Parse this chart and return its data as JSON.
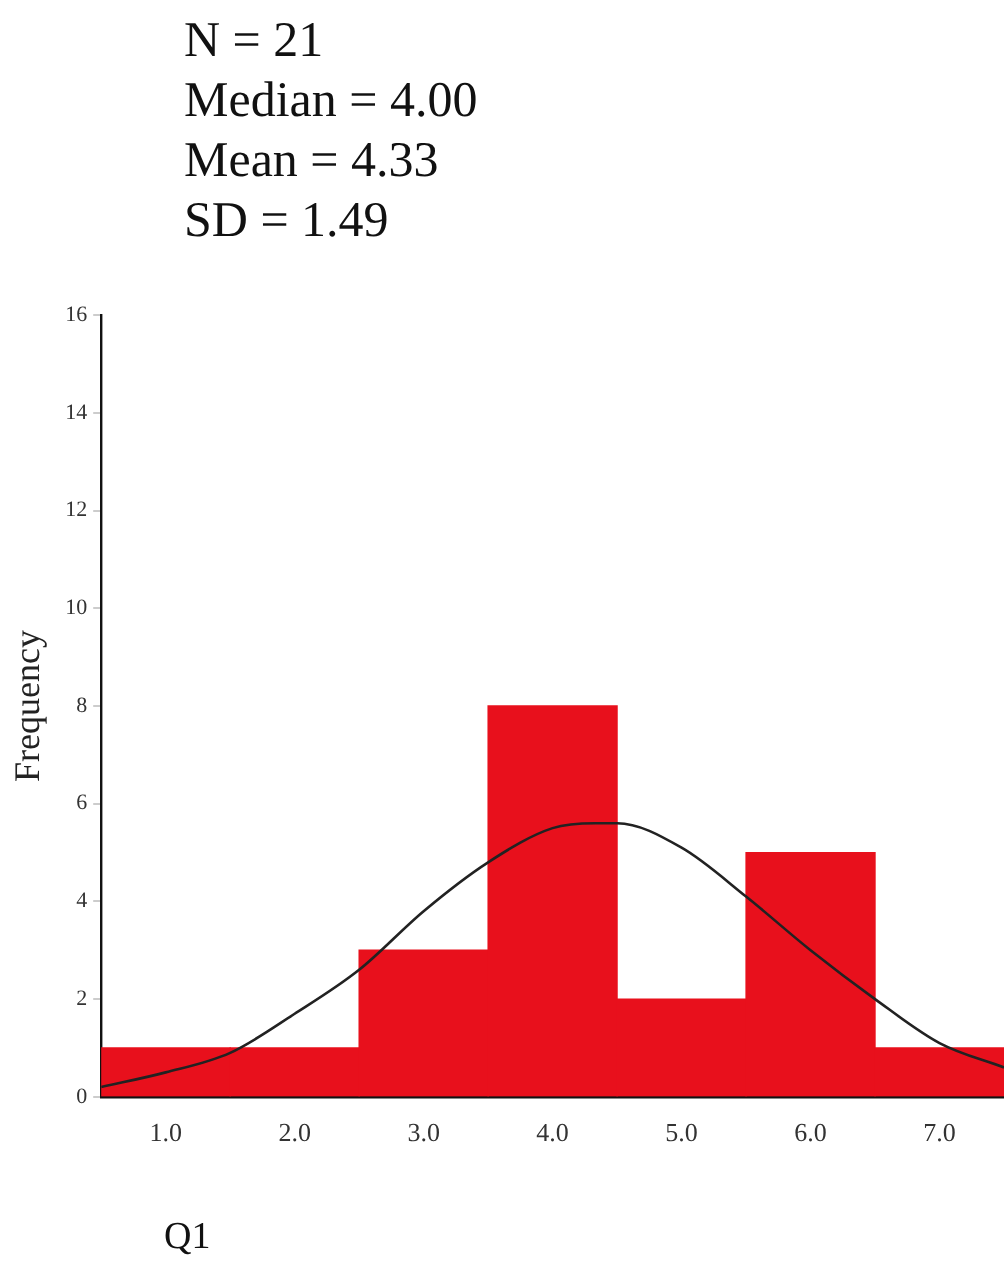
{
  "chart_data": {
    "type": "histogram",
    "annotations": [
      "N = 21",
      "Median = 4.00",
      "Mean = 4.33",
      "SD = 1.49"
    ],
    "xlabel": "Q1",
    "ylabel": "Frequency",
    "bins": [
      0.5,
      1.5,
      2.5,
      3.5,
      4.5,
      5.5,
      6.5,
      7.5
    ],
    "values": [
      1,
      1,
      3,
      8,
      2,
      5,
      1
    ],
    "color": "#e8101c",
    "series": [
      {
        "type": "line",
        "color": "#222222",
        "x": [
          0.5,
          1.0,
          1.5,
          2.0,
          2.5,
          3.0,
          3.5,
          4.0,
          4.33,
          4.5,
          5.0,
          5.5,
          6.0,
          6.5,
          7.0,
          7.5
        ],
        "values": [
          0.2,
          0.5,
          0.9,
          1.7,
          2.6,
          3.8,
          4.8,
          5.5,
          5.6,
          5.6,
          5.1,
          4.1,
          3.0,
          2.0,
          1.1,
          0.6
        ]
      }
    ],
    "xlim": [
      0.5,
      7.5
    ],
    "xticks": [
      {
        "value": 1,
        "label": "1.0"
      },
      {
        "value": 2,
        "label": "2.0"
      },
      {
        "value": 3,
        "label": "3.0"
      },
      {
        "value": 4,
        "label": "4.0"
      },
      {
        "value": 5,
        "label": "5.0"
      },
      {
        "value": 6,
        "label": "6.0"
      },
      {
        "value": 7,
        "label": "7.0"
      }
    ],
    "ylim": [
      0,
      16
    ],
    "yticks": [
      0,
      2,
      4,
      6,
      8,
      10,
      12,
      14,
      16
    ],
    "grid": false,
    "legend": false
  }
}
